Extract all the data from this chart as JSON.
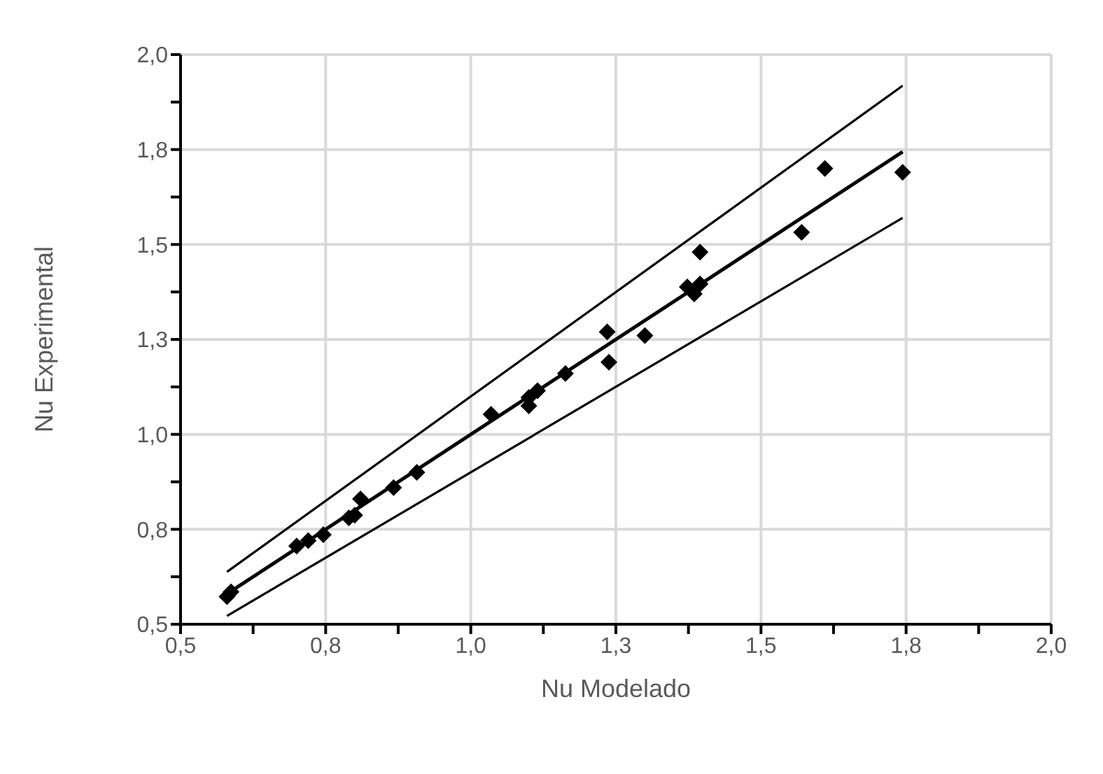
{
  "chart_data": {
    "type": "scatter",
    "xlabel": "Nu Modelado",
    "ylabel": "Nu Experimental",
    "xlim": [
      0.5,
      2.0
    ],
    "ylim": [
      0.5,
      2.0
    ],
    "xticks": [
      {
        "value": 0.5,
        "label": "0,5"
      },
      {
        "value": 0.625,
        "label": null
      },
      {
        "value": 0.75,
        "label": "0,8"
      },
      {
        "value": 0.875,
        "label": null
      },
      {
        "value": 1.0,
        "label": "1,0"
      },
      {
        "value": 1.125,
        "label": null
      },
      {
        "value": 1.25,
        "label": "1,3"
      },
      {
        "value": 1.375,
        "label": null
      },
      {
        "value": 1.5,
        "label": "1,5"
      },
      {
        "value": 1.625,
        "label": null
      },
      {
        "value": 1.75,
        "label": "1,8"
      },
      {
        "value": 1.875,
        "label": null
      },
      {
        "value": 2.0,
        "label": "2,0"
      }
    ],
    "yticks": [
      {
        "value": 0.5,
        "label": "0,5"
      },
      {
        "value": 0.625,
        "label": null
      },
      {
        "value": 0.75,
        "label": "0,8"
      },
      {
        "value": 0.875,
        "label": null
      },
      {
        "value": 1.0,
        "label": "1,0"
      },
      {
        "value": 1.125,
        "label": null
      },
      {
        "value": 1.25,
        "label": "1,3"
      },
      {
        "value": 1.375,
        "label": null
      },
      {
        "value": 1.5,
        "label": "1,5"
      },
      {
        "value": 1.625,
        "label": null
      },
      {
        "value": 1.75,
        "label": "1,8"
      },
      {
        "value": 1.875,
        "label": null
      },
      {
        "value": 2.0,
        "label": "2,0"
      }
    ],
    "grid": true,
    "legend": false,
    "series": [
      {
        "type": "scatter",
        "marker": "diamond",
        "color": "#000000",
        "x": [
          0.58,
          0.587,
          0.7,
          0.72,
          0.746,
          0.79,
          0.8,
          0.81,
          0.867,
          0.907,
          1.035,
          1.1,
          1.1,
          1.115,
          1.163,
          1.235,
          1.238,
          1.3,
          1.373,
          1.385,
          1.395,
          1.395,
          1.57,
          1.61,
          1.744
        ],
        "values": [
          0.573,
          0.585,
          0.706,
          0.72,
          0.736,
          0.78,
          0.787,
          0.83,
          0.86,
          0.9,
          1.053,
          1.075,
          1.097,
          1.115,
          1.16,
          1.27,
          1.19,
          1.26,
          1.388,
          1.37,
          1.396,
          1.48,
          1.532,
          1.7,
          1.69
        ]
      },
      {
        "type": "line",
        "marker": "none",
        "color": "#000000",
        "line_style": "solid",
        "x": [
          0.58,
          1.744
        ],
        "values": [
          0.58,
          1.744
        ]
      },
      {
        "type": "line",
        "marker": "none",
        "color": "#000000",
        "line_style": "solid",
        "x": [
          0.58,
          1.744
        ],
        "values": [
          0.638,
          1.918
        ]
      },
      {
        "type": "line",
        "marker": "none",
        "color": "#000000",
        "line_style": "solid",
        "x": [
          0.58,
          1.744
        ],
        "values": [
          0.522,
          1.57
        ]
      }
    ]
  }
}
